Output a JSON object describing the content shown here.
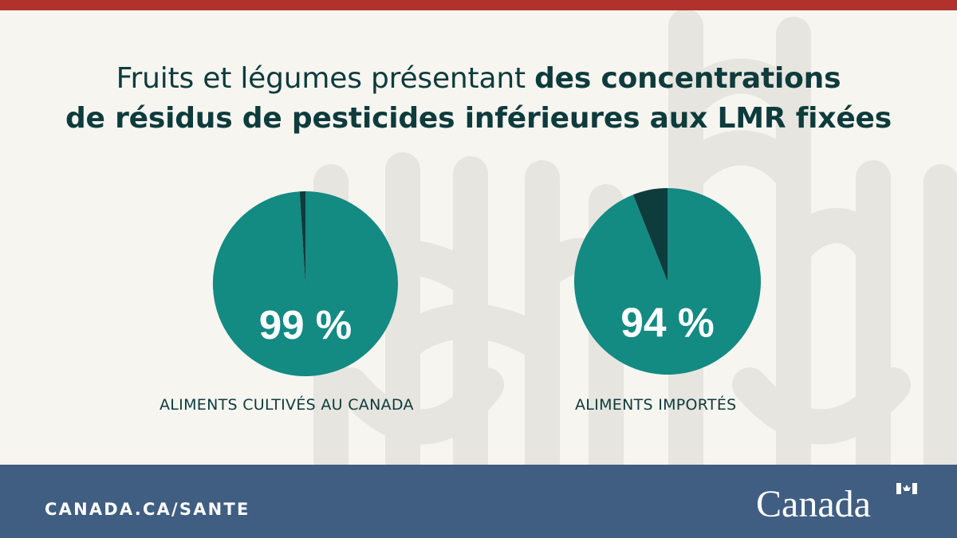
{
  "title": {
    "line1_light": "Fruits et légumes présentant ",
    "line1_bold": "des concentrations",
    "line2_bold": "de résidus de pesticides inférieures aux LMR fixées"
  },
  "chart_data": [
    {
      "type": "pie",
      "title": "",
      "category_label": "ALIMENTS CULTIVÉS AU CANADA",
      "slices": [
        {
          "label": "99 %",
          "value": 99,
          "color": "#138a82"
        },
        {
          "label": "",
          "value": 1,
          "color": "#0e3b3c"
        }
      ]
    },
    {
      "type": "pie",
      "title": "",
      "category_label": "ALIMENTS IMPORTÉS",
      "slices": [
        {
          "label": "94 %",
          "value": 94,
          "color": "#138a82"
        },
        {
          "label": "",
          "value": 6,
          "color": "#0e3b3c"
        }
      ]
    }
  ],
  "footer": {
    "url": "CANADA.CA/SANTE",
    "wordmark": "Canadä"
  },
  "colors": {
    "top_bar": "#b1322c",
    "background": "#f6f5f0",
    "pattern": "#e6e5df",
    "footer": "#3f5e82",
    "main_slice": "#138a82",
    "minor_slice": "#0e3b3c",
    "text": "#0e3b3c"
  }
}
